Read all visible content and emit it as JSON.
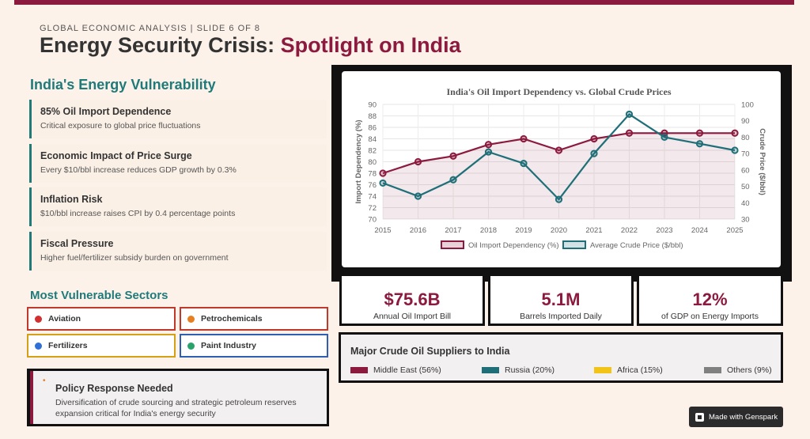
{
  "header": {
    "subtitle": "GLOBAL ECONOMIC ANALYSIS | SLIDE 6 OF 8",
    "title_main": "Energy Security Crisis: ",
    "title_accent": "Spotlight on India"
  },
  "vulnerability": {
    "heading": "India's Energy Vulnerability",
    "cards": [
      {
        "title": "85% Oil Import Dependence",
        "desc": "Critical exposure to global price fluctuations"
      },
      {
        "title": "Economic Impact of Price Surge",
        "desc": "Every $10/bbl increase reduces GDP growth by 0.3%"
      },
      {
        "title": "Inflation Risk",
        "desc": "$10/bbl increase raises CPI by 0.4 percentage points"
      },
      {
        "title": "Fiscal Pressure",
        "desc": "Higher fuel/fertilizer subsidy burden on government"
      }
    ]
  },
  "sectors": {
    "heading": "Most Vulnerable Sectors",
    "items": [
      {
        "label": "Aviation",
        "color": "#d32f2f",
        "border": "#c0392b"
      },
      {
        "label": "Petrochemicals",
        "color": "#e67e22",
        "border": "#c0392b"
      },
      {
        "label": "Fertilizers",
        "color": "#2f6fd6",
        "border": "#d4a017"
      },
      {
        "label": "Paint Industry",
        "color": "#27a36b",
        "border": "#2f5fb3"
      }
    ]
  },
  "policy": {
    "bullet": "•",
    "title": "Policy Response Needed",
    "desc": "Diversification of crude sourcing and strategic petroleum reserves expansion critical for India's energy security"
  },
  "chart_data": {
    "type": "line",
    "title": "India's Oil Import Dependency vs. Global Crude Prices",
    "x": [
      2015,
      2016,
      2017,
      2018,
      2019,
      2020,
      2021,
      2022,
      2023,
      2024,
      2025
    ],
    "series": [
      {
        "name": "Oil Import Dependency (%)",
        "axis": "left",
        "color": "#8b1a3e",
        "fill": "rgba(139,26,62,0.10)",
        "values": [
          78,
          80,
          81,
          83,
          84,
          82,
          84,
          85,
          85,
          85,
          85
        ]
      },
      {
        "name": "Average Crude Price ($/bbl)",
        "axis": "right",
        "color": "#1f6f78",
        "fill": "rgba(31,111,120,0.10)",
        "values": [
          52,
          44,
          54,
          71,
          64,
          42,
          70,
          94,
          80,
          76,
          72
        ]
      }
    ],
    "ylabel": "Import Dependency (%)",
    "y2label": "Crude Price ($/bbl)",
    "ylim": [
      70,
      90
    ],
    "y2lim": [
      30,
      100
    ],
    "yticks": [
      70,
      72,
      74,
      76,
      78,
      80,
      82,
      84,
      86,
      88,
      90
    ],
    "y2ticks": [
      30,
      40,
      50,
      60,
      70,
      80,
      90,
      100
    ],
    "grid": true,
    "legend": "bottom"
  },
  "stats": [
    {
      "value": "$75.6B",
      "label": "Annual Oil Import Bill"
    },
    {
      "value": "5.1M",
      "label": "Barrels Imported Daily"
    },
    {
      "value": "12%",
      "label": "of GDP on Energy Imports"
    }
  ],
  "suppliers": {
    "title": "Major Crude Oil Suppliers to India",
    "items": [
      {
        "label": "Middle East (56%)",
        "color": "#8b1a3e"
      },
      {
        "label": "Russia (20%)",
        "color": "#1f6f78"
      },
      {
        "label": "Africa (15%)",
        "color": "#f2c418"
      },
      {
        "label": "Others (9%)",
        "color": "#808080"
      }
    ]
  },
  "badge": {
    "label": "Made with Genspark"
  }
}
